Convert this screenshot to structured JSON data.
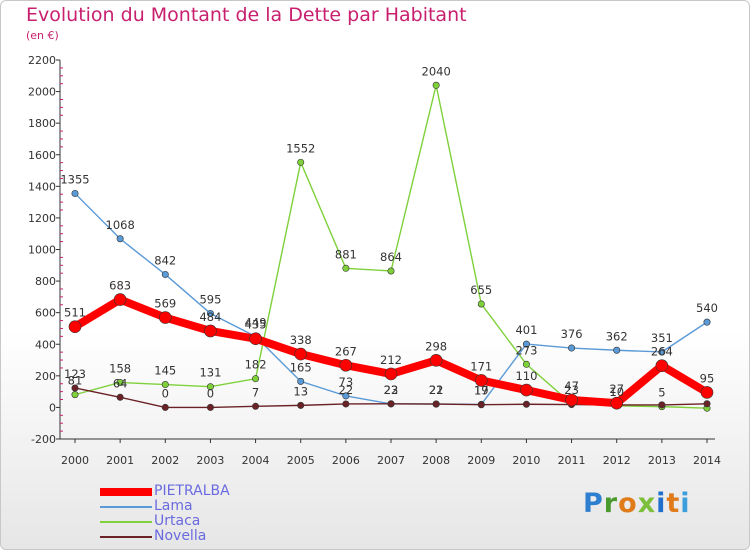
{
  "title": "Evolution du Montant de la Dette par Habitant",
  "subtitle": "(en €)",
  "logo_text": "Proxiti",
  "chart_data": {
    "type": "line",
    "title": "Evolution du Montant de la Dette par Habitant",
    "subtitle": "(en €)",
    "xlabel": "",
    "ylabel": "",
    "ylim": [
      -200,
      2200
    ],
    "yticks": [
      -200,
      0,
      200,
      400,
      600,
      800,
      1000,
      1200,
      1400,
      1600,
      1800,
      2000,
      2200
    ],
    "categories": [
      "2000",
      "2001",
      "2002",
      "2003",
      "2004",
      "2005",
      "2006",
      "2007",
      "2008",
      "2009",
      "2010",
      "2011",
      "2012",
      "2013",
      "2014"
    ],
    "grid": false,
    "legend_position": "bottom-left",
    "series": [
      {
        "name": "PIETRALBA",
        "color": "#ff0000",
        "values": [
          511,
          683,
          569,
          484,
          435,
          338,
          267,
          212,
          298,
          171,
          110,
          47,
          27,
          264,
          95
        ],
        "labels": [
          "511",
          "683",
          "569",
          "484",
          "435",
          "338",
          "267",
          "212",
          "298",
          "171",
          "110",
          "47",
          "27",
          "264",
          "95"
        ]
      },
      {
        "name": "Lama",
        "color": "#5a9ad6",
        "values": [
          1355,
          1068,
          842,
          595,
          449,
          165,
          73,
          22,
          22,
          19,
          401,
          376,
          362,
          351,
          540
        ],
        "labels": [
          "1355",
          "1068",
          "842",
          "595",
          "449",
          "165",
          "73",
          "22",
          "22",
          "19",
          "401",
          "376",
          "362",
          "351",
          "540"
        ]
      },
      {
        "name": "Urtaca",
        "color": "#7fd13b",
        "values": [
          81,
          158,
          145,
          131,
          182,
          1552,
          881,
          864,
          2040,
          655,
          273,
          23,
          10,
          5,
          -5
        ],
        "labels": [
          "81",
          "158",
          "145",
          "131",
          "182",
          "1552",
          "881",
          "864",
          "2040",
          "655",
          "273",
          "23",
          "10",
          "5",
          ""
        ]
      },
      {
        "name": "Novella",
        "color": "#6b2226",
        "values": [
          123,
          64,
          0,
          0,
          7,
          13,
          22,
          23,
          21,
          17,
          20,
          18,
          16,
          16,
          23
        ],
        "labels": [
          "123",
          "64",
          "0",
          "0",
          "7",
          "13",
          "22",
          "23",
          "21",
          "17",
          "",
          "",
          "",
          "",
          ""
        ]
      }
    ]
  },
  "colors": {
    "title": "#c8206f",
    "legend_text": "#6a6ae0",
    "axis_label": "#333333"
  }
}
